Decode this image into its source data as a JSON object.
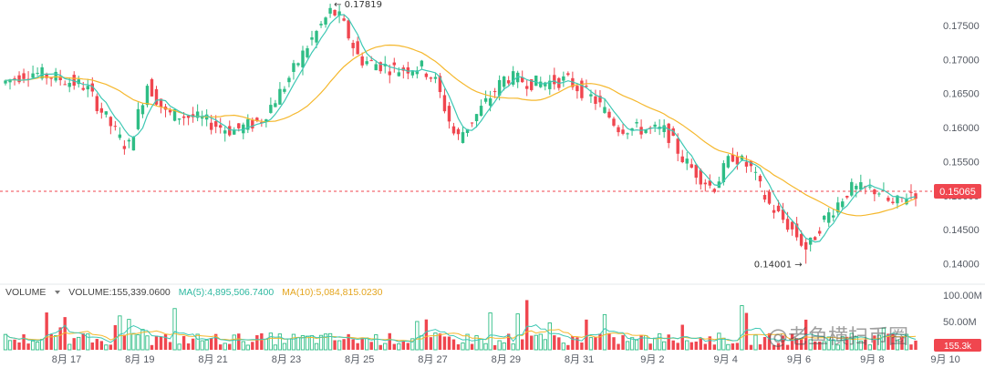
{
  "chart_data": {
    "type": "candlestick",
    "price_axis": {
      "ticks": [
        "0.17500",
        "0.17000",
        "0.16500",
        "0.16000",
        "0.15500",
        "0.15000",
        "0.14500",
        "0.14000"
      ],
      "range": [
        0.1378,
        0.1782
      ]
    },
    "x_ticks": [
      "8月 17",
      "8月 19",
      "8月 21",
      "8月 23",
      "8月 25",
      "8月 27",
      "8月 29",
      "8月 31",
      "9月 2",
      "9月 4",
      "9月 6",
      "9月 8",
      "9月 10"
    ],
    "current_price": 0.15065,
    "current_price_label": "0.15065",
    "high_label": "← 0.17819",
    "low_label": "0.14001 →",
    "high_value": 0.17819,
    "low_value": 0.14001,
    "volume": {
      "label": "VOLUME",
      "value": "VOLUME:155,339.0600",
      "ma5": "MA(5):4,895,506.7400",
      "ma10": "MA(10):5,084,815.0230",
      "axis_top": "100.00M",
      "axis_mid": "50.00M",
      "last_badge": "155.3k",
      "max": 100
    },
    "colors": {
      "up": "#2ebd85",
      "down": "#f0464f",
      "ma_fast": "#3ec8b4",
      "ma_slow": "#f5b82e",
      "price_badge": "#f0464f"
    }
  },
  "watermark": "@老鱼横扫币圈"
}
